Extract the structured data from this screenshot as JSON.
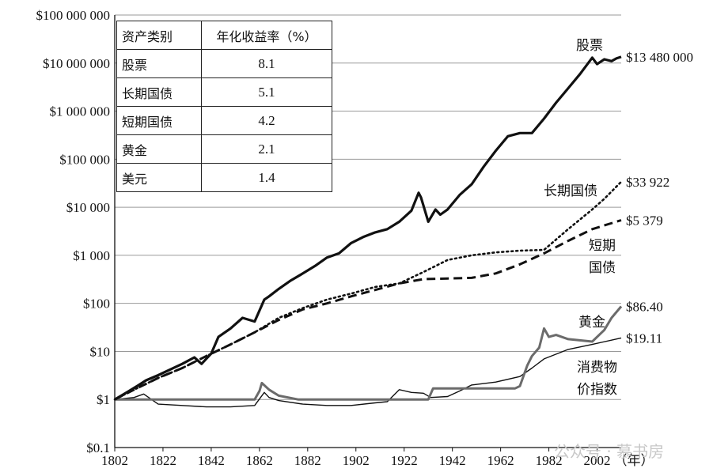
{
  "table": {
    "header": [
      "资产类别",
      "年化收益率（%）"
    ],
    "rows": [
      [
        "股票",
        "8.1"
      ],
      [
        "长期国债",
        "5.1"
      ],
      [
        "短期国债",
        "4.2"
      ],
      [
        "黄金",
        "2.1"
      ],
      [
        "美元",
        "1.4"
      ]
    ]
  },
  "watermark": "公众号 · 慕书房",
  "chart_data": {
    "type": "line",
    "y_scale": "log",
    "ylim": [
      0.1,
      100000000
    ],
    "xlim": [
      1802,
      2012
    ],
    "x_ticks": [
      1802,
      1822,
      1842,
      1862,
      1882,
      1902,
      1922,
      1942,
      1962,
      1982,
      2002
    ],
    "y_ticks": [
      {
        "v": 100000000,
        "label": "$100 000 000"
      },
      {
        "v": 10000000,
        "label": "$10 000 000"
      },
      {
        "v": 1000000,
        "label": "$1 000 000"
      },
      {
        "v": 100000,
        "label": "$100 000"
      },
      {
        "v": 10000,
        "label": "$10 000"
      },
      {
        "v": 1000,
        "label": "$1 000"
      },
      {
        "v": 100,
        "label": "$100"
      },
      {
        "v": 10,
        "label": "$10"
      },
      {
        "v": 1,
        "label": "$1"
      },
      {
        "v": 0.1,
        "label": "$0.1"
      }
    ],
    "x_unit": "（年）",
    "grid": "horizontal",
    "series": [
      {
        "name": "股票",
        "style": "solid-thick",
        "end_label": "$13 480 000",
        "x": [
          1802,
          1807,
          1812,
          1815,
          1820,
          1825,
          1830,
          1835,
          1838,
          1842,
          1845,
          1850,
          1855,
          1860,
          1864,
          1866,
          1870,
          1875,
          1880,
          1885,
          1890,
          1895,
          1900,
          1905,
          1910,
          1915,
          1920,
          1925,
          1928,
          1929,
          1932,
          1935,
          1937,
          1940,
          1945,
          1950,
          1955,
          1960,
          1965,
          1970,
          1975,
          1980,
          1985,
          1990,
          1995,
          2000,
          2002,
          2005,
          2008,
          2010,
          2012
        ],
        "y": [
          1,
          1.4,
          2,
          2.5,
          3.2,
          4.2,
          5.5,
          7.5,
          5.5,
          9,
          20,
          30,
          50,
          42,
          120,
          140,
          200,
          300,
          420,
          600,
          900,
          1100,
          1800,
          2400,
          3000,
          3500,
          5000,
          8500,
          20000,
          16000,
          5000,
          9000,
          7000,
          9000,
          18000,
          30000,
          70000,
          150000,
          300000,
          350000,
          350000,
          700000,
          1500000,
          3000000,
          6000000,
          13000000,
          9500000,
          12000000,
          11000000,
          12500000,
          13480000
        ]
      },
      {
        "name": "长期国债",
        "style": "dotted",
        "end_label": "$33 922",
        "x": [
          1802,
          1810,
          1820,
          1830,
          1840,
          1850,
          1860,
          1870,
          1880,
          1890,
          1900,
          1910,
          1920,
          1930,
          1940,
          1950,
          1960,
          1970,
          1980,
          1990,
          2000,
          2005,
          2012
        ],
        "y": [
          1,
          1.6,
          2.8,
          4.5,
          8,
          14,
          25,
          50,
          80,
          120,
          160,
          220,
          260,
          450,
          800,
          1000,
          1150,
          1250,
          1300,
          3500,
          9000,
          15000,
          33922
        ]
      },
      {
        "name": "短期国债",
        "style": "dashed",
        "end_label": "$5 379",
        "x": [
          1802,
          1810,
          1820,
          1830,
          1840,
          1850,
          1860,
          1870,
          1880,
          1890,
          1900,
          1910,
          1920,
          1930,
          1940,
          1950,
          1960,
          1970,
          1980,
          1990,
          2000,
          2012
        ],
        "y": [
          1,
          1.6,
          2.8,
          4.5,
          8,
          14,
          25,
          45,
          75,
          100,
          140,
          190,
          260,
          320,
          330,
          340,
          420,
          650,
          1100,
          2000,
          3500,
          5379
        ]
      },
      {
        "name": "黄金",
        "style": "solid-gray",
        "end_label": "$86.40",
        "x": [
          1802,
          1810,
          1820,
          1830,
          1860,
          1862,
          1863,
          1866,
          1870,
          1878,
          1900,
          1920,
          1932,
          1934,
          1940,
          1950,
          1960,
          1968,
          1970,
          1973,
          1975,
          1978,
          1980,
          1982,
          1985,
          1990,
          2000,
          2005,
          2008,
          2012
        ],
        "y": [
          1,
          1,
          1,
          1,
          1,
          1.5,
          2.2,
          1.6,
          1.2,
          1,
          1,
          1,
          1,
          1.7,
          1.7,
          1.7,
          1.7,
          1.7,
          1.9,
          5,
          8,
          12,
          30,
          20,
          22,
          18,
          16,
          28,
          50,
          86.4
        ]
      },
      {
        "name": "消费物价指数",
        "style": "solid-thin",
        "end_label": "$19.11",
        "x": [
          1802,
          1810,
          1814,
          1820,
          1830,
          1840,
          1850,
          1860,
          1864,
          1866,
          1870,
          1880,
          1890,
          1900,
          1910,
          1915,
          1920,
          1925,
          1930,
          1933,
          1940,
          1945,
          1950,
          1960,
          1970,
          1975,
          1980,
          1990,
          2000,
          2012
        ],
        "y": [
          1,
          1.1,
          1.3,
          0.8,
          0.75,
          0.7,
          0.7,
          0.75,
          1.4,
          1.1,
          0.95,
          0.8,
          0.75,
          0.75,
          0.85,
          0.9,
          1.6,
          1.4,
          1.35,
          1.1,
          1.15,
          1.5,
          2,
          2.3,
          3,
          4.5,
          7,
          11,
          14,
          19.11
        ]
      }
    ]
  }
}
